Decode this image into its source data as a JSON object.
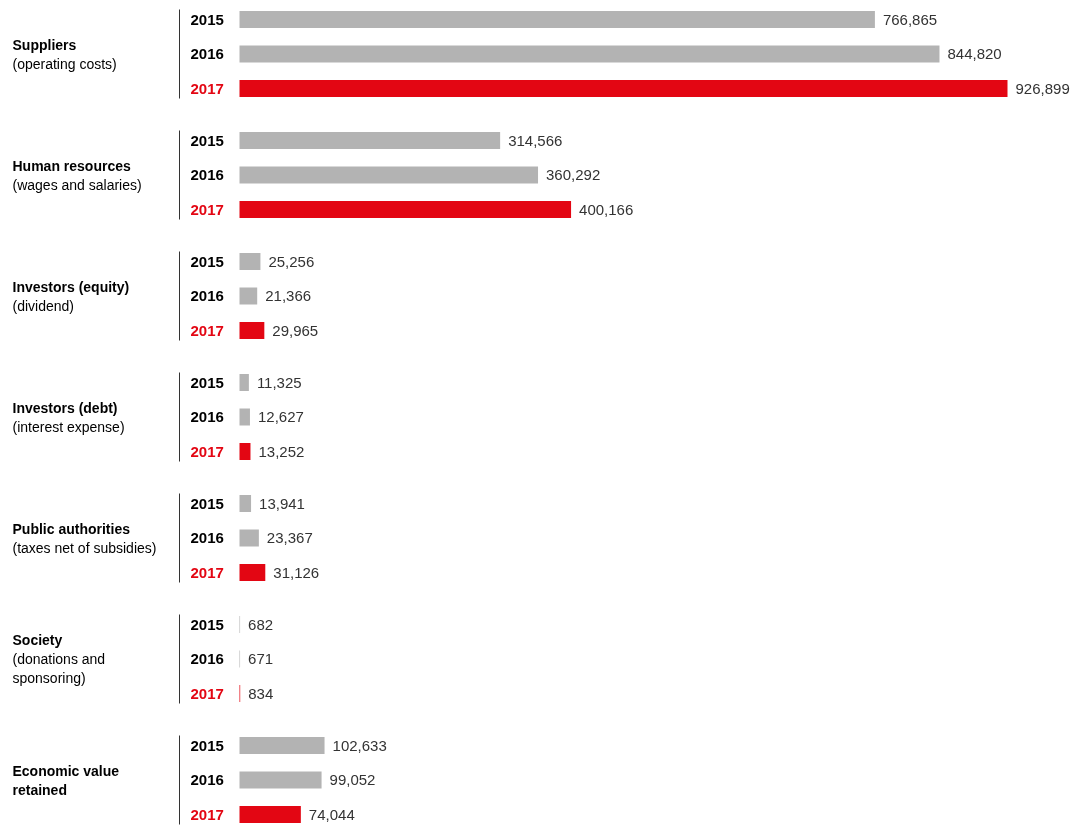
{
  "chart_data": {
    "type": "bar",
    "orientation": "horizontal",
    "grid": false,
    "categories": [
      "Suppliers\n(operating costs)",
      "Human resources\n(wages and salaries)",
      "Investors (equity)\n(dividend)",
      "Investors (debt)\n(interest expense)",
      "Public authorities\n(taxes net of subsidies)",
      "Society\n(donations and\nsponsoring)",
      "Economic value\nretained"
    ],
    "series": [
      {
        "name": "2015",
        "color": "#b3b3b3",
        "values": [
          766865,
          314566,
          25256,
          11325,
          13941,
          682,
          102633
        ],
        "value_labels": [
          "766,865",
          "314,566",
          "25,256",
          "11,325",
          "13,941",
          "682",
          "102,633"
        ]
      },
      {
        "name": "2016",
        "color": "#b3b3b3",
        "values": [
          844820,
          360292,
          21366,
          12627,
          23367,
          671,
          99052
        ],
        "value_labels": [
          "844,820",
          "360,292",
          "21,366",
          "12,627",
          "23,367",
          "671",
          "99,052"
        ]
      },
      {
        "name": "2017",
        "color": "#e30613",
        "values": [
          926899,
          400166,
          29965,
          13252,
          31126,
          834,
          74044
        ],
        "value_labels": [
          "926,899",
          "400,166",
          "29,965",
          "13,252",
          "31,126",
          "834",
          "74,044"
        ]
      }
    ]
  }
}
